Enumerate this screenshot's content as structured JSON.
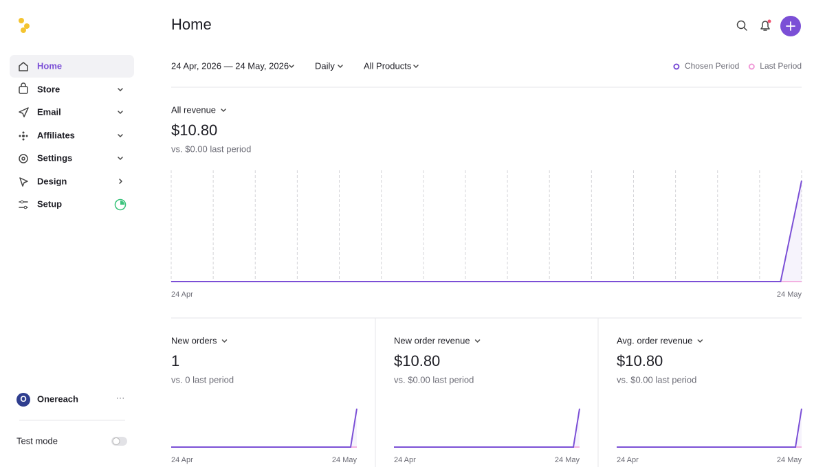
{
  "sidebar": {
    "nav": [
      "Home",
      "Store",
      "Email",
      "Affiliates",
      "Settings",
      "Design",
      "Setup"
    ],
    "avatar": "O",
    "account": "Onereach",
    "test_mode": "Test mode"
  },
  "header": {
    "title": "Home"
  },
  "filters": {
    "date_range": "24 Apr, 2026 — 24 May, 2026",
    "interval": "Daily",
    "products": "All Products"
  },
  "legend": [
    {
      "name": "Chosen Period",
      "color": "#7b4fd6"
    },
    {
      "name": "Last Period",
      "color": "#f09ad8"
    }
  ],
  "cards": [
    {
      "metric": "All revenue",
      "value": "$10.80",
      "comparison": "vs. $0.00 last period",
      "x_start": "24 Apr",
      "x_end": "24 May",
      "chosen": [
        0,
        0,
        0,
        0,
        0,
        0,
        0,
        0,
        0,
        0,
        0,
        0,
        0,
        0,
        0,
        0,
        0,
        0,
        0,
        0,
        0,
        0,
        0,
        0,
        0,
        0,
        0,
        0,
        0,
        0,
        10.8
      ],
      "last": [
        0,
        0,
        0,
        0,
        0,
        0,
        0,
        0,
        0,
        0,
        0,
        0,
        0,
        0,
        0,
        0,
        0,
        0,
        0,
        0,
        0,
        0,
        0,
        0,
        0,
        0,
        0,
        0,
        0,
        0,
        0
      ]
    },
    {
      "metric": "New orders",
      "value": "1",
      "comparison": "vs. 0 last period",
      "x_start": "24 Apr",
      "x_end": "24 May",
      "chosen": [
        0,
        0,
        0,
        0,
        0,
        0,
        0,
        0,
        0,
        0,
        0,
        0,
        0,
        0,
        0,
        0,
        0,
        0,
        0,
        0,
        0,
        0,
        0,
        0,
        0,
        0,
        0,
        0,
        0,
        0,
        1
      ],
      "last": [
        0,
        0,
        0,
        0,
        0,
        0,
        0,
        0,
        0,
        0,
        0,
        0,
        0,
        0,
        0,
        0,
        0,
        0,
        0,
        0,
        0,
        0,
        0,
        0,
        0,
        0,
        0,
        0,
        0,
        0,
        0
      ]
    },
    {
      "metric": "New order revenue",
      "value": "$10.80",
      "comparison": "vs. $0.00 last period",
      "x_start": "24 Apr",
      "x_end": "24 May",
      "chosen": [
        0,
        0,
        0,
        0,
        0,
        0,
        0,
        0,
        0,
        0,
        0,
        0,
        0,
        0,
        0,
        0,
        0,
        0,
        0,
        0,
        0,
        0,
        0,
        0,
        0,
        0,
        0,
        0,
        0,
        0,
        10.8
      ],
      "last": [
        0,
        0,
        0,
        0,
        0,
        0,
        0,
        0,
        0,
        0,
        0,
        0,
        0,
        0,
        0,
        0,
        0,
        0,
        0,
        0,
        0,
        0,
        0,
        0,
        0,
        0,
        0,
        0,
        0,
        0,
        0
      ]
    },
    {
      "metric": "Avg. order revenue",
      "value": "$10.80",
      "comparison": "vs. $0.00 last period",
      "x_start": "24 Apr",
      "x_end": "24 May",
      "chosen": [
        0,
        0,
        0,
        0,
        0,
        0,
        0,
        0,
        0,
        0,
        0,
        0,
        0,
        0,
        0,
        0,
        0,
        0,
        0,
        0,
        0,
        0,
        0,
        0,
        0,
        0,
        0,
        0,
        0,
        0,
        10.8
      ],
      "last": [
        0,
        0,
        0,
        0,
        0,
        0,
        0,
        0,
        0,
        0,
        0,
        0,
        0,
        0,
        0,
        0,
        0,
        0,
        0,
        0,
        0,
        0,
        0,
        0,
        0,
        0,
        0,
        0,
        0,
        0,
        0
      ]
    }
  ]
}
